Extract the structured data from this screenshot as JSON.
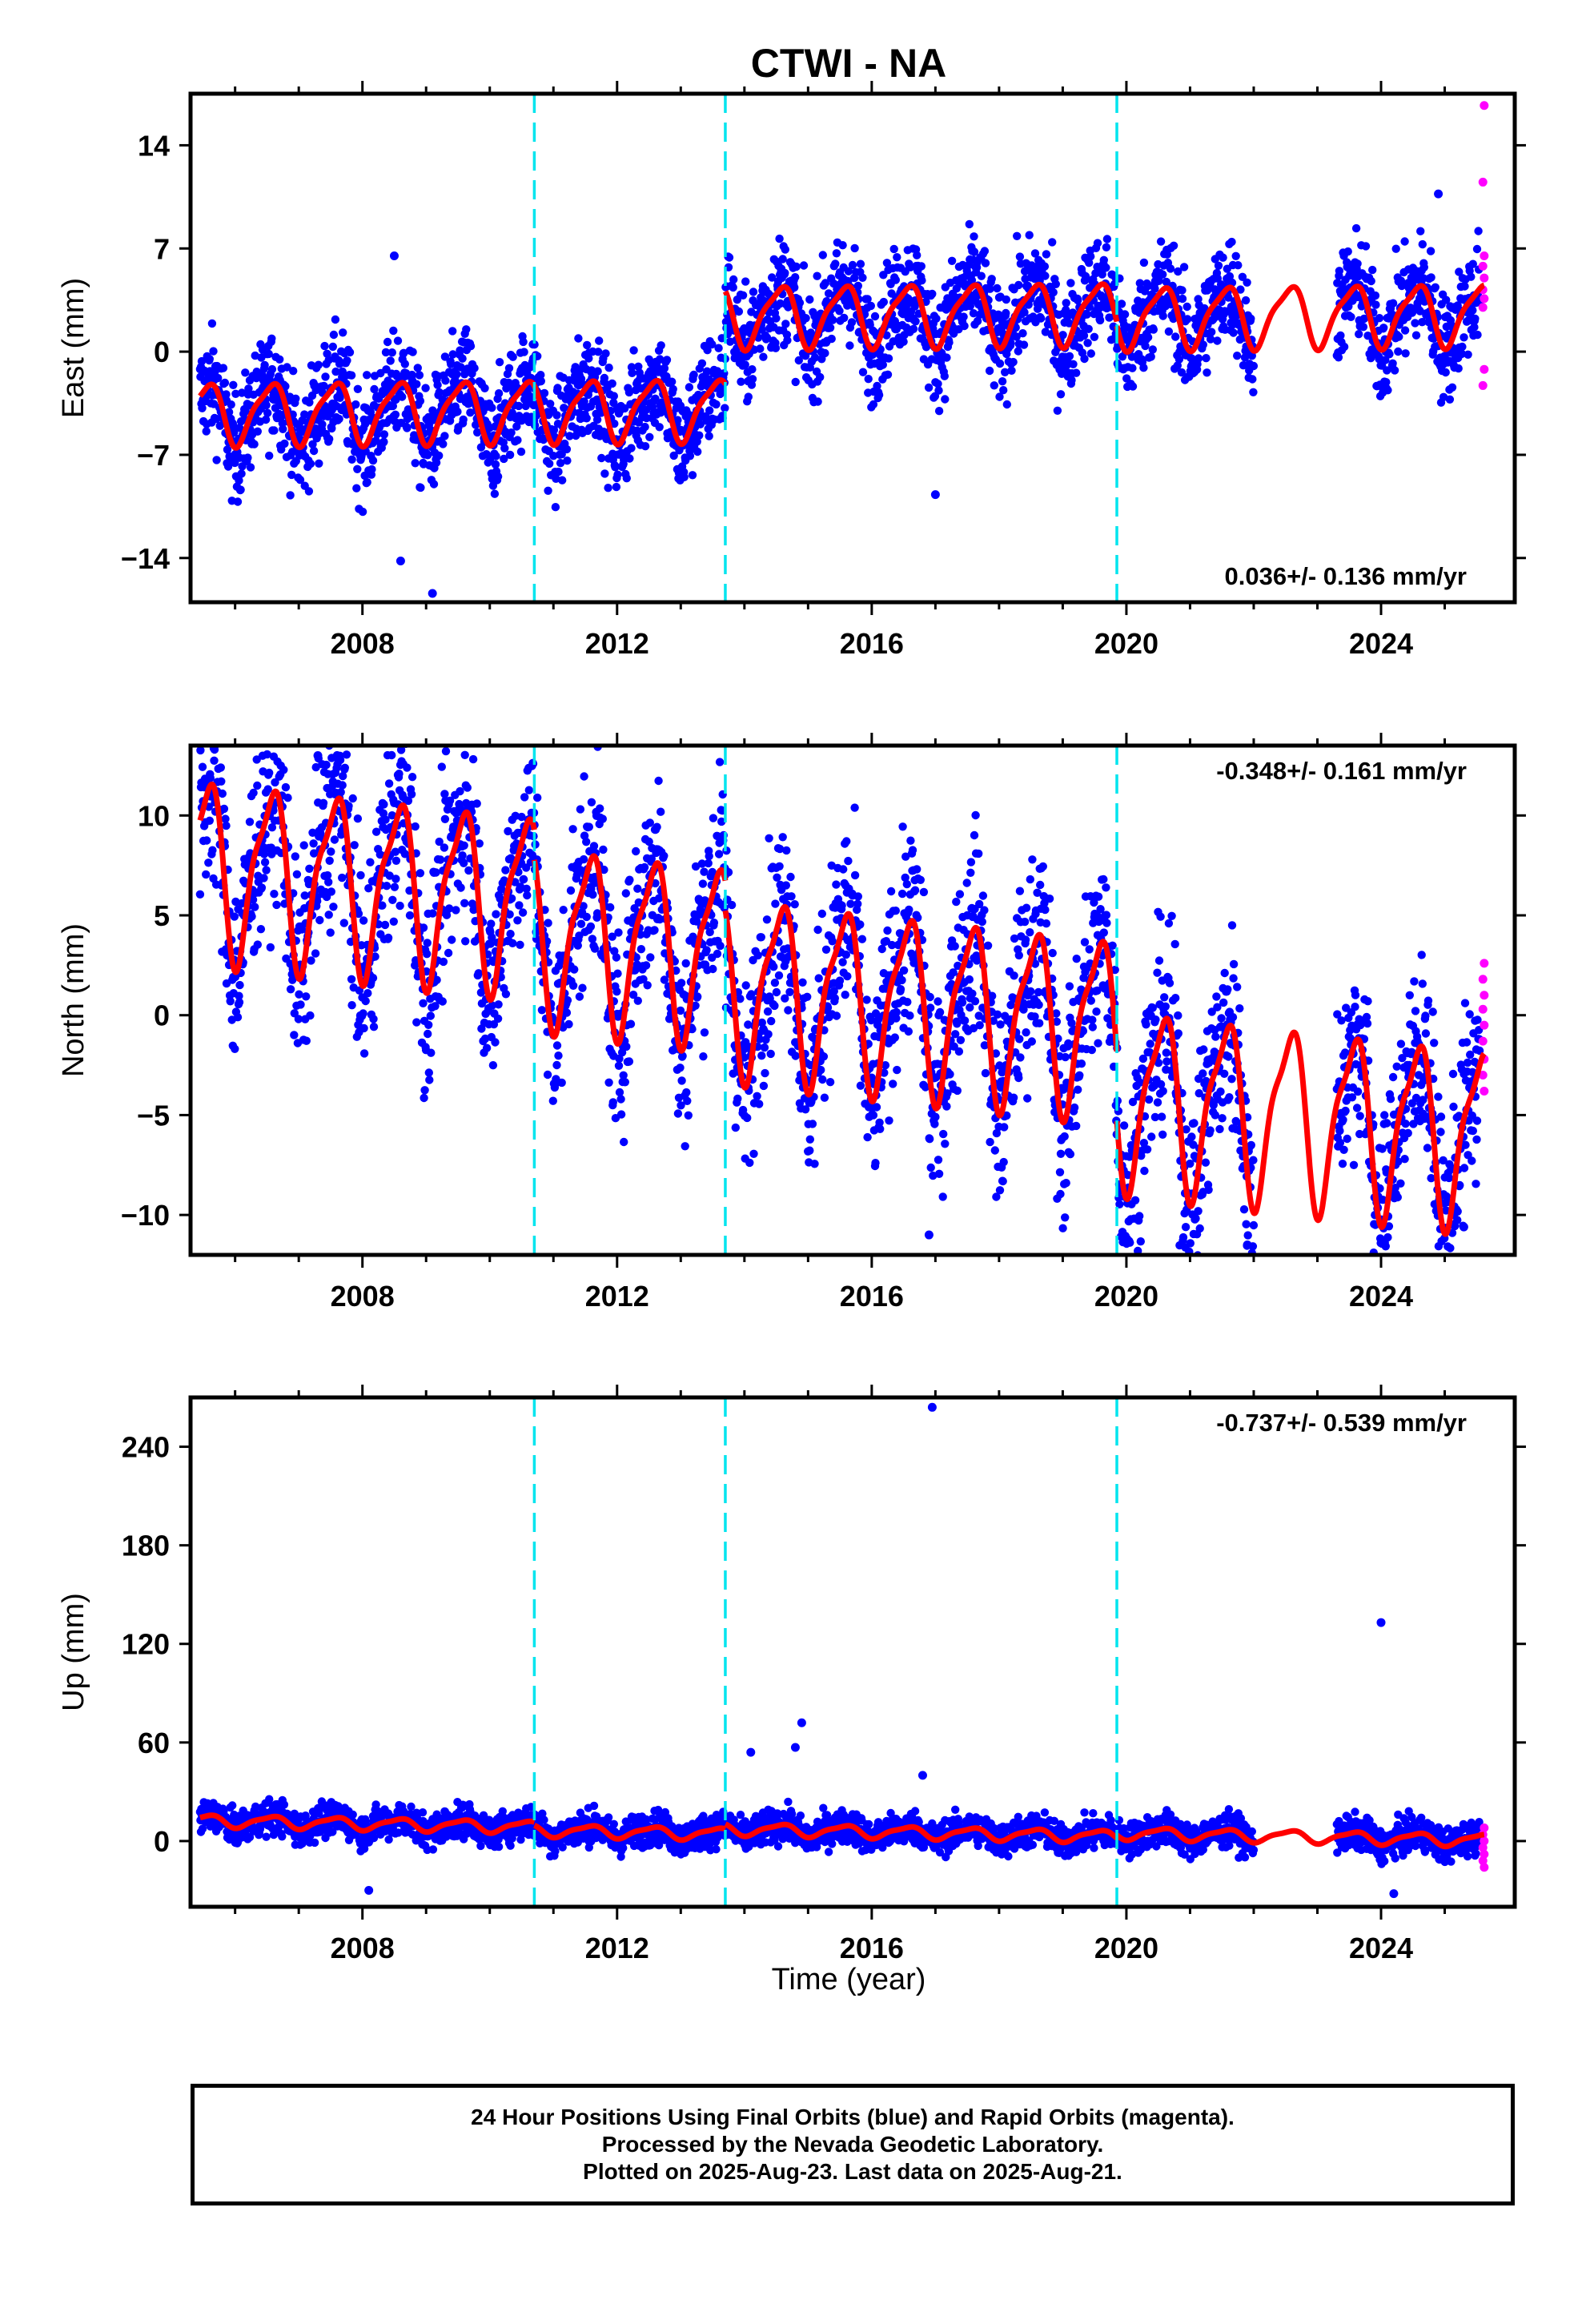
{
  "title": "CTWI - NA",
  "xlabel": "Time (year)",
  "footer": {
    "line1": "24 Hour Positions Using Final Orbits (blue) and Rapid Orbits (magenta).",
    "line2": "Processed by the Nevada Geodetic Laboratory.",
    "line3": "Plotted on 2025-Aug-23. Last data on 2025-Aug-21."
  },
  "colors": {
    "final_orbits": "#0000ff",
    "rapid_orbits": "#ff00ff",
    "model": "#ff0000",
    "offset_lines": "#00e5ee"
  },
  "chart_data": [
    {
      "type": "scatter",
      "panel": "east",
      "ylabel": "East (mm)",
      "rate_label": "0.036+/- 0.136 mm/yr",
      "xlim": [
        2005.3,
        2026.1
      ],
      "ylim": [
        -17,
        17.5
      ],
      "x_ticks": [
        2008,
        2012,
        2016,
        2020,
        2024
      ],
      "y_ticks": [
        -14,
        -7,
        0,
        7,
        14
      ],
      "offset_epochs": [
        2010.7,
        2013.7,
        2019.85
      ],
      "data_gap": [
        2022.0,
        2023.3
      ],
      "model": {
        "trend": 0.036,
        "segment_levels": [
          -3.8,
          -3.8,
          2.5,
          2.2
        ],
        "annual_amplitude": 2.0,
        "semiannual_amplitude": 0.5
      },
      "scatter_spread": 1.8,
      "rapid_points": [
        16.7,
        11.5,
        6.5,
        5.8,
        5.0,
        4.2,
        3.6,
        3.0,
        -1.2,
        -2.3
      ],
      "outliers": [
        {
          "x": 2008.5,
          "y": 6.5
        },
        {
          "x": 2008.6,
          "y": -14.2
        },
        {
          "x": 2009.1,
          "y": -16.4
        },
        {
          "x": 2017.0,
          "y": -9.7
        },
        {
          "x": 2024.9,
          "y": 10.7
        }
      ]
    },
    {
      "type": "scatter",
      "panel": "north",
      "ylabel": "North (mm)",
      "rate_label": "-0.348+/- 0.161 mm/yr",
      "xlim": [
        2005.3,
        2026.1
      ],
      "ylim": [
        -12,
        13.5
      ],
      "x_ticks": [
        2008,
        2012,
        2016,
        2020,
        2024
      ],
      "y_ticks": [
        -10,
        -5,
        0,
        5,
        10
      ],
      "offset_epochs": [
        2010.7,
        2013.7,
        2019.85
      ],
      "data_gap": [
        2022.0,
        2023.3
      ],
      "model": {
        "trend": -0.348,
        "segment_levels": [
          4.0,
          2.5,
          1.0,
          -2.5
        ],
        "annual_amplitude": 4.2,
        "semiannual_amplitude": 1.2
      },
      "scatter_spread": 2.4,
      "rapid_points": [
        2.6,
        1.8,
        1.0,
        0.3,
        -0.5,
        -1.3,
        -2.2,
        -3.0,
        -3.8
      ],
      "outliers": [
        {
          "x": 2007.3,
          "y": 13.0
        },
        {
          "x": 2016.9,
          "y": -11.0
        },
        {
          "x": 2021.9,
          "y": -11.5
        },
        {
          "x": 2025.3,
          "y": -10.6
        }
      ]
    },
    {
      "type": "scatter",
      "panel": "up",
      "ylabel": "Up (mm)",
      "rate_label": "-0.737+/- 0.539 mm/yr",
      "xlim": [
        2005.3,
        2026.1
      ],
      "ylim": [
        -40,
        270
      ],
      "x_ticks": [
        2008,
        2012,
        2016,
        2020,
        2024
      ],
      "y_ticks": [
        0,
        60,
        120,
        180,
        240
      ],
      "offset_epochs": [
        2010.7,
        2013.7,
        2019.85
      ],
      "data_gap": [
        2022.0,
        2023.3
      ],
      "model": {
        "trend": -0.737,
        "segment_levels": [
          5.0,
          3.0,
          6.0,
          8.0
        ],
        "annual_amplitude": 3.5,
        "semiannual_amplitude": 1.0
      },
      "scatter_spread": 5.0,
      "rapid_points": [
        8,
        4,
        0,
        -4,
        -8,
        -12,
        -16
      ],
      "outliers": [
        {
          "x": 2016.95,
          "y": 264
        },
        {
          "x": 2024.0,
          "y": 133
        },
        {
          "x": 2014.9,
          "y": 72
        },
        {
          "x": 2014.1,
          "y": 54
        },
        {
          "x": 2014.8,
          "y": 57
        },
        {
          "x": 2016.8,
          "y": 40
        },
        {
          "x": 2008.1,
          "y": -30
        },
        {
          "x": 2024.2,
          "y": -32
        }
      ]
    }
  ]
}
